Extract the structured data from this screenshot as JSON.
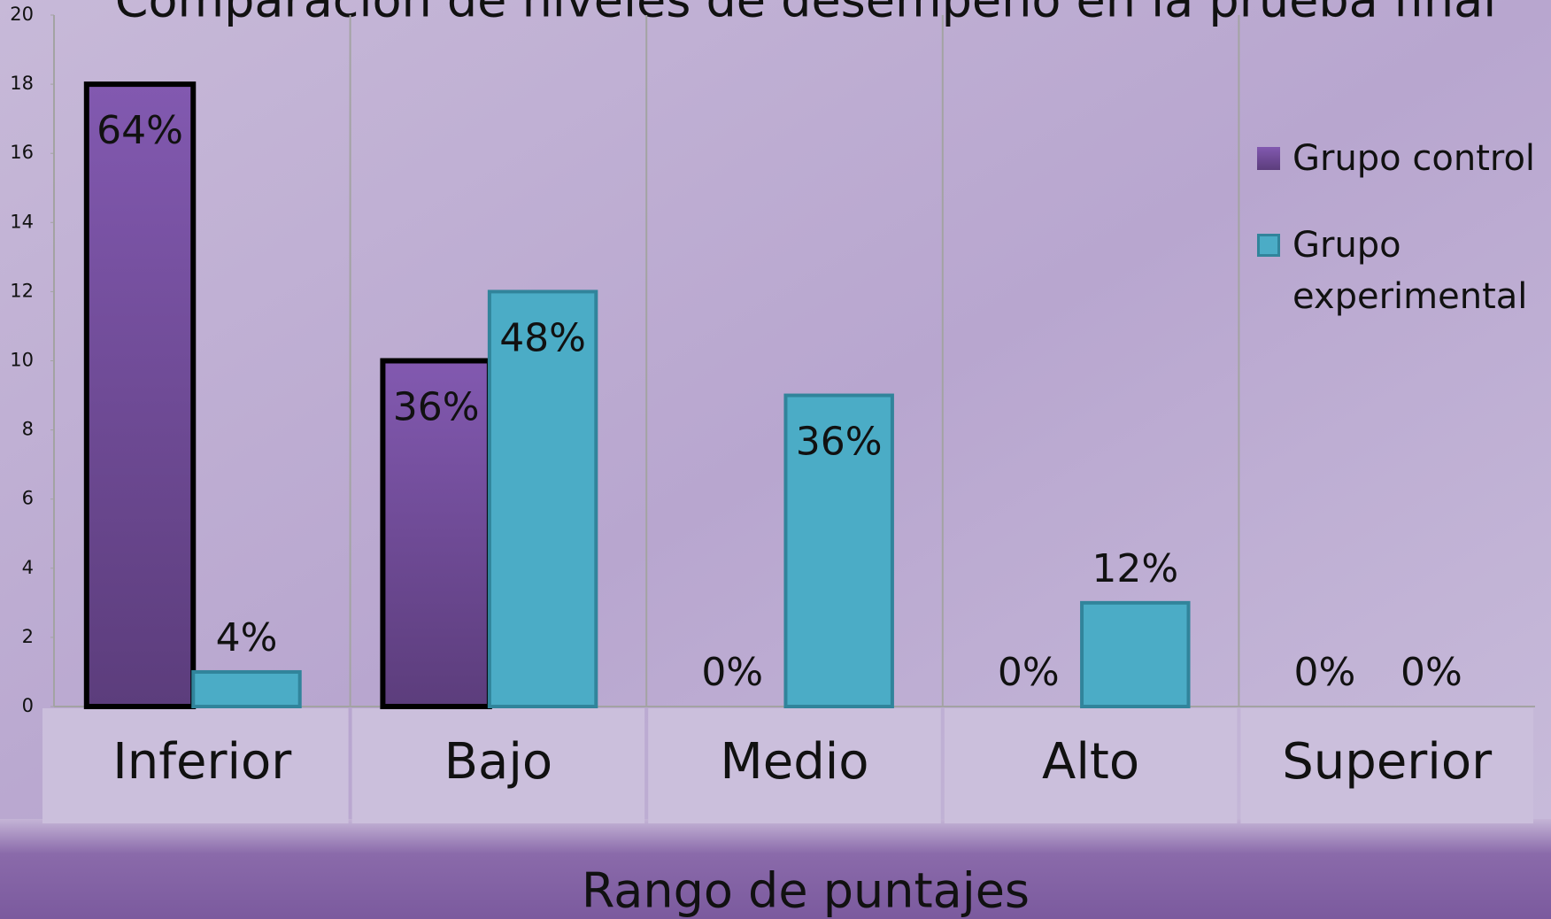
{
  "chart_data": {
    "type": "bar",
    "title": "Comparación de niveles de desempeño en la prueba final",
    "x_label": "Rango de puntajes",
    "categories": [
      "Inferior",
      "Bajo",
      "Medio",
      "Alto",
      "Superior"
    ],
    "series": [
      {
        "name": "Grupo control",
        "color": "#7a52a6",
        "values": [
          18,
          10,
          0,
          0,
          0
        ],
        "percent_labels": [
          "64%",
          "36%",
          "0%",
          "0%",
          "0%"
        ]
      },
      {
        "name": "Grupo experimental",
        "color": "#4bacc6",
        "values": [
          1,
          12,
          9,
          3,
          0
        ],
        "percent_labels": [
          "4%",
          "48%",
          "36%",
          "12%",
          "0%"
        ]
      }
    ],
    "ylim": [
      0,
      20
    ],
    "yticks": [
      0,
      2,
      4,
      6,
      8,
      10,
      12,
      14,
      16,
      18,
      20
    ],
    "grid": false,
    "legend": "right"
  }
}
